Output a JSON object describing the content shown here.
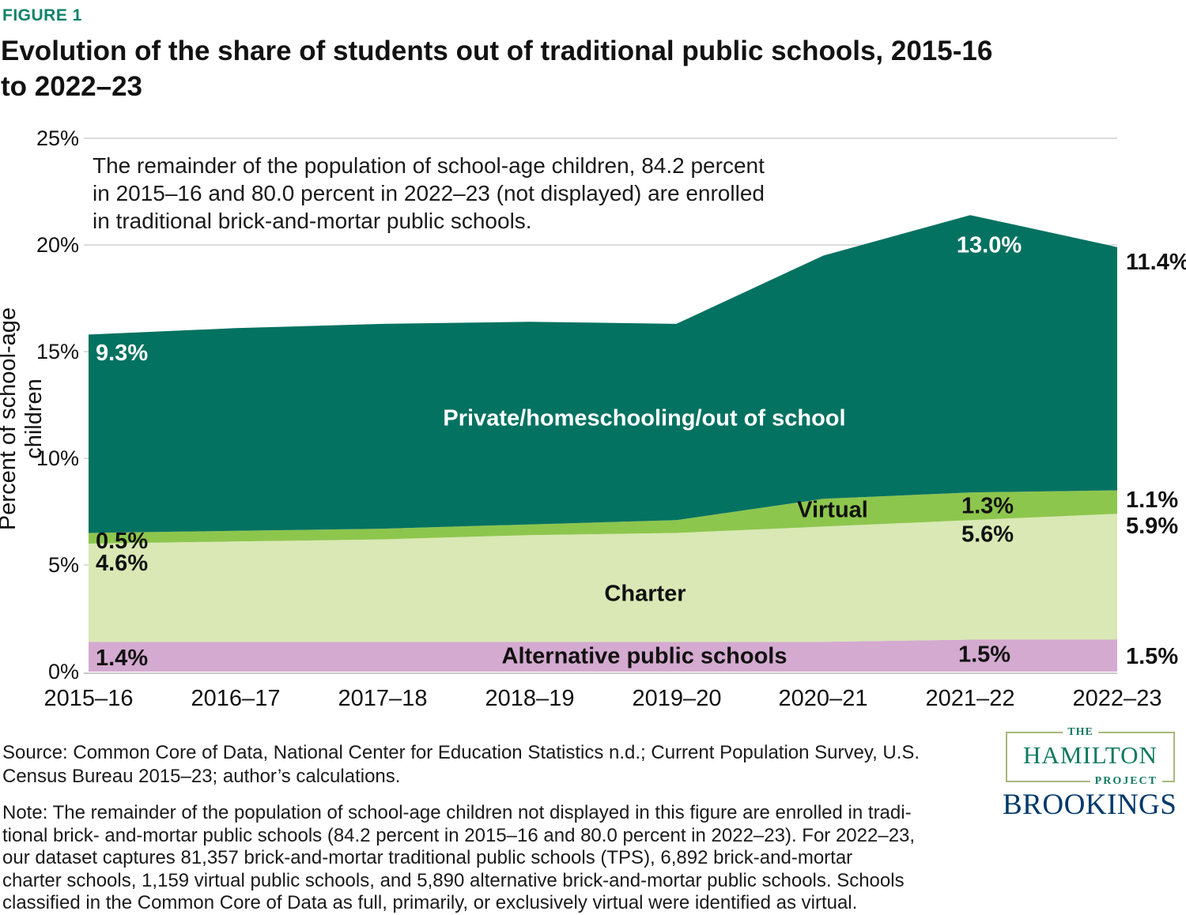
{
  "figure_label": "FIGURE 1",
  "title_lines": [
    "Evolution of the share of students out of traditional public schools, 2015-16",
    "to 2022–23"
  ],
  "annotation_lines": [
    "The remainder of the population of school-age children, 84.2 percent",
    "in 2015–16 and 80.0 percent in 2022–23 (not displayed) are enrolled",
    "in traditional brick-and-mortar public schools."
  ],
  "y_axis": {
    "title": "Percent of school-age children",
    "ticks": [
      "25%",
      "20%",
      "15%",
      "10%",
      "5%",
      "0%"
    ]
  },
  "chart_data": {
    "type": "area",
    "stacked": true,
    "x_labels": [
      "2015–16",
      "2016–17",
      "2017–18",
      "2018–19",
      "2019–20",
      "2020–21",
      "2021–22",
      "2022–23"
    ],
    "ylim": [
      0,
      25
    ],
    "y_tick_values": [
      0,
      5,
      10,
      15,
      20,
      25
    ],
    "grid": true,
    "series": [
      {
        "name": "Alternative public schools",
        "color": "#d4aad0",
        "values": [
          1.4,
          1.4,
          1.4,
          1.4,
          1.4,
          1.4,
          1.5,
          1.5
        ]
      },
      {
        "name": "Charter",
        "color": "#d9e8b4",
        "values": [
          4.6,
          4.7,
          4.8,
          5.0,
          5.1,
          5.4,
          5.6,
          5.9
        ]
      },
      {
        "name": "Virtual",
        "color": "#8dc64d",
        "values": [
          0.5,
          0.5,
          0.5,
          0.5,
          0.6,
          1.3,
          1.3,
          1.1
        ]
      },
      {
        "name": "Private/homeschooling/out of school",
        "color": "#047261",
        "values": [
          9.3,
          9.5,
          9.6,
          9.5,
          9.2,
          11.4,
          13.0,
          11.4
        ]
      }
    ]
  },
  "point_labels": {
    "left": {
      "private": "9.3%",
      "virtual": "0.5%",
      "charter": "4.6%",
      "alternative": "1.4%"
    },
    "mid": {
      "private": "13.0%",
      "virtual": "1.3%",
      "charter": "5.6%",
      "alternative": "1.5%"
    },
    "right": {
      "private": "11.4%",
      "virtual": "1.1%",
      "charter": "5.9%",
      "alternative": "1.5%"
    }
  },
  "source_lines": [
    "Source: Common Core of Data, National Center for Education Statistics n.d.; Current Population Survey, U.S.",
    "Census Bureau 2015–23; author’s calculations."
  ],
  "note_lines": [
    "Note: The remainder of the population of school-age children not displayed in this figure are enrolled in tradi-",
    "tional brick- and-mortar public schools (84.2 percent in 2015–16 and 80.0 percent in 2022–23). For 2022–23,",
    "our dataset captures 81,357 brick-and-mortar traditional public schools (TPS), 6,892 brick-and-mortar",
    "charter schools, 1,159 virtual public schools, and 5,890 alternative brick-and-mortar public schools. Schools",
    "classified in the Common Core of Data as full, primarily, or exclusively virtual were identified as virtual."
  ],
  "logos": {
    "hamilton_the": "THE",
    "hamilton_name": "HAMILTON",
    "hamilton_project": "PROJECT",
    "brookings": "BROOKINGS"
  }
}
